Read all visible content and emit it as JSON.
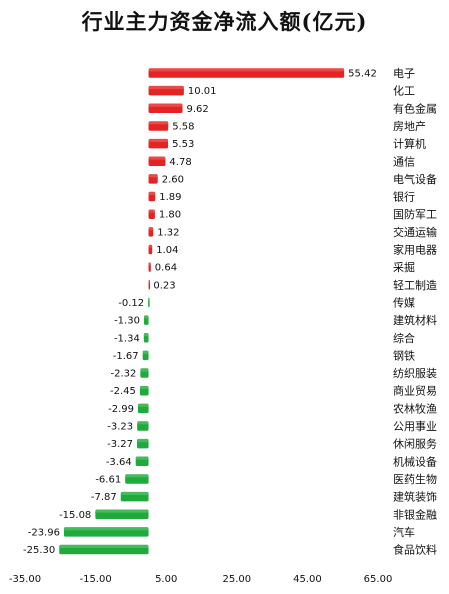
{
  "chart_data": {
    "type": "bar",
    "orientation": "horizontal",
    "title": "行业主力资金净流入额(亿元)",
    "xlabel": "",
    "ylabel": "",
    "xlim": [
      -35,
      65
    ],
    "xticks": [
      "-35.00",
      "-15.00",
      "5.00",
      "25.00",
      "45.00",
      "65.00"
    ],
    "grid": false,
    "legend": false,
    "colors": {
      "positive": "#e52322",
      "negative": "#1faa3c"
    },
    "categories": [
      "电子",
      "化工",
      "有色金属",
      "房地产",
      "计算机",
      "通信",
      "电气设备",
      "银行",
      "国防军工",
      "交通运输",
      "家用电器",
      "采掘",
      "轻工制造",
      "传媒",
      "建筑材料",
      "综合",
      "钢铁",
      "纺织服装",
      "商业贸易",
      "农林牧渔",
      "公用事业",
      "休闲服务",
      "机械设备",
      "医药生物",
      "建筑装饰",
      "非银金融",
      "汽车",
      "食品饮料"
    ],
    "values": [
      55.42,
      10.01,
      9.62,
      5.58,
      5.53,
      4.78,
      2.6,
      1.89,
      1.8,
      1.32,
      1.04,
      0.64,
      0.23,
      -0.12,
      -1.3,
      -1.34,
      -1.67,
      -2.32,
      -2.45,
      -2.99,
      -3.23,
      -3.27,
      -3.64,
      -6.61,
      -7.87,
      -15.08,
      -23.96,
      -25.3
    ],
    "value_labels": [
      "55.42",
      "10.01",
      "9.62",
      "5.58",
      "5.53",
      "4.78",
      "2.60",
      "1.89",
      "1.80",
      "1.32",
      "1.04",
      "0.64",
      "0.23",
      "-0.12",
      "-1.30",
      "-1.34",
      "-1.67",
      "-2.32",
      "-2.45",
      "-2.99",
      "-3.23",
      "-3.27",
      "-3.64",
      "-6.61",
      "-7.87",
      "-15.08",
      "-23.96",
      "-25.30"
    ]
  }
}
